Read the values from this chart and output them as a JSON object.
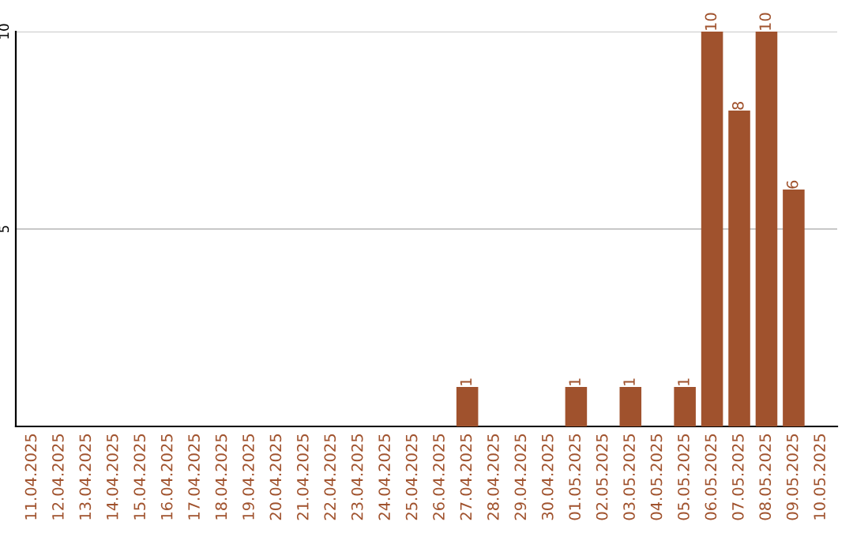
{
  "chart_data": {
    "type": "bar",
    "categories": [
      "11.04.2025",
      "12.04.2025",
      "13.04.2025",
      "14.04.2025",
      "15.04.2025",
      "16.04.2025",
      "17.04.2025",
      "18.04.2025",
      "19.04.2025",
      "20.04.2025",
      "21.04.2025",
      "22.04.2025",
      "23.04.2025",
      "24.04.2025",
      "25.04.2025",
      "26.04.2025",
      "27.04.2025",
      "28.04.2025",
      "29.04.2025",
      "30.04.2025",
      "01.05.2025",
      "02.05.2025",
      "03.05.2025",
      "04.05.2025",
      "05.05.2025",
      "06.05.2025",
      "07.05.2025",
      "08.05.2025",
      "09.05.2025",
      "10.05.2025"
    ],
    "values": [
      0,
      0,
      0,
      0,
      0,
      0,
      0,
      0,
      0,
      0,
      0,
      0,
      0,
      0,
      0,
      0,
      1,
      0,
      0,
      0,
      1,
      0,
      1,
      0,
      1,
      10,
      8,
      10,
      6,
      0
    ],
    "value_labels": [
      null,
      null,
      null,
      null,
      null,
      null,
      null,
      null,
      null,
      null,
      null,
      null,
      null,
      null,
      null,
      null,
      "1",
      null,
      null,
      null,
      "1",
      null,
      "1",
      null,
      "1",
      "10",
      "8",
      "10",
      "6",
      null
    ],
    "color": "#a0522d",
    "ylim": [
      0,
      10
    ],
    "yticks": [
      5,
      10
    ],
    "grid": "y"
  }
}
